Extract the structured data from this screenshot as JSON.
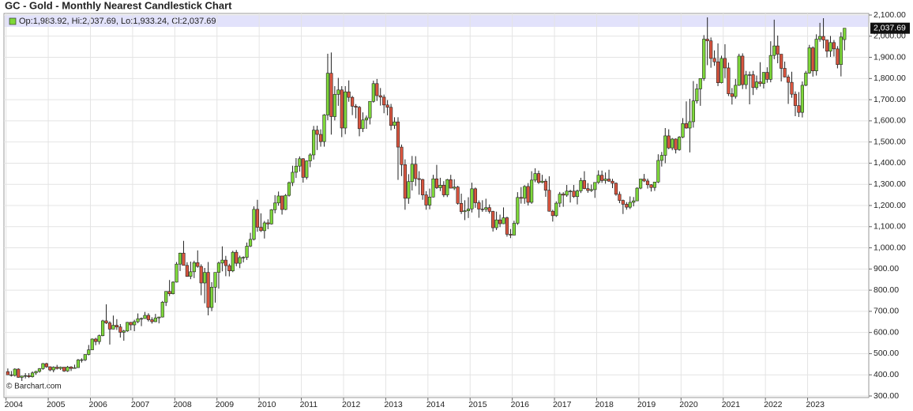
{
  "chart_data": {
    "type": "candlestick",
    "title": "GC - Gold - Monthly Nearest Candlestick Chart",
    "legend": "Op:1,983.92, Hi:2,037.69, Lo:1,933.24, Cl:2,037.69",
    "last_label": "2,037.69",
    "credit": "© Barchart.com",
    "up_color": "#7ed83a",
    "down_color": "#d9553f",
    "grid": true,
    "xlim": [
      2003.95,
      2024.45
    ],
    "xticks": [
      2004,
      2005,
      2006,
      2007,
      2008,
      2009,
      2010,
      2011,
      2012,
      2013,
      2014,
      2015,
      2016,
      2017,
      2018,
      2019,
      2020,
      2021,
      2022,
      2023
    ],
    "ylim": [
      300,
      2100
    ],
    "yticks": [
      {
        "value": 300,
        "label": "300.00"
      },
      {
        "value": 400,
        "label": "400.00"
      },
      {
        "value": 500,
        "label": "500.00"
      },
      {
        "value": 600,
        "label": "600.00"
      },
      {
        "value": 700,
        "label": "700.00"
      },
      {
        "value": 800,
        "label": "800.00"
      },
      {
        "value": 900,
        "label": "900.00"
      },
      {
        "value": 1000,
        "label": "1,000.00"
      },
      {
        "value": 1100,
        "label": "1,100.00"
      },
      {
        "value": 1200,
        "label": "1,200.00"
      },
      {
        "value": 1300,
        "label": "1,300.00"
      },
      {
        "value": 1400,
        "label": "1,400.00"
      },
      {
        "value": 1500,
        "label": "1,500.00"
      },
      {
        "value": 1600,
        "label": "1,600.00"
      },
      {
        "value": 1700,
        "label": "1,700.00"
      },
      {
        "value": 1800,
        "label": "1,800.00"
      },
      {
        "value": 1900,
        "label": "1,900.00"
      },
      {
        "value": 2000,
        "label": "2,000.00"
      },
      {
        "value": 2100,
        "label": "2,100.00"
      }
    ],
    "candles": [
      [
        415,
        430,
        399,
        400
      ],
      [
        400,
        418,
        392,
        397
      ],
      [
        397,
        431,
        392,
        427
      ],
      [
        427,
        431,
        386,
        388
      ],
      [
        388,
        396,
        371,
        394
      ],
      [
        394,
        408,
        383,
        396
      ],
      [
        396,
        408,
        385,
        391
      ],
      [
        391,
        416,
        387,
        409
      ],
      [
        409,
        419,
        400,
        416
      ],
      [
        416,
        432,
        410,
        429
      ],
      [
        429,
        456,
        424,
        453
      ],
      [
        453,
        457,
        433,
        438
      ],
      [
        438,
        440,
        417,
        423
      ],
      [
        423,
        440,
        412,
        436
      ],
      [
        436,
        447,
        425,
        430
      ],
      [
        430,
        439,
        423,
        436
      ],
      [
        436,
        437,
        414,
        418
      ],
      [
        418,
        442,
        414,
        437
      ],
      [
        437,
        441,
        418,
        430
      ],
      [
        430,
        448,
        429,
        434
      ],
      [
        434,
        475,
        433,
        470
      ],
      [
        470,
        478,
        458,
        471
      ],
      [
        471,
        497,
        465,
        496
      ],
      [
        496,
        541,
        492,
        518
      ],
      [
        518,
        572,
        517,
        569
      ],
      [
        569,
        575,
        540,
        557
      ],
      [
        557,
        590,
        544,
        585
      ],
      [
        585,
        660,
        582,
        655
      ],
      [
        655,
        733,
        640,
        645
      ],
      [
        645,
        653,
        543,
        616
      ],
      [
        616,
        680,
        615,
        634
      ],
      [
        634,
        663,
        612,
        626
      ],
      [
        626,
        640,
        576,
        601
      ],
      [
        601,
        613,
        561,
        607
      ],
      [
        607,
        650,
        603,
        648
      ],
      [
        648,
        650,
        610,
        636
      ],
      [
        636,
        660,
        606,
        651
      ],
      [
        651,
        690,
        644,
        665
      ],
      [
        665,
        671,
        630,
        666
      ],
      [
        666,
        697,
        664,
        681
      ],
      [
        681,
        691,
        652,
        660
      ],
      [
        660,
        672,
        642,
        651
      ],
      [
        651,
        688,
        649,
        669
      ],
      [
        669,
        675,
        643,
        673
      ],
      [
        673,
        749,
        671,
        743
      ],
      [
        743,
        795,
        725,
        794
      ],
      [
        794,
        848,
        772,
        783
      ],
      [
        783,
        842,
        780,
        838
      ],
      [
        838,
        933,
        836,
        923
      ],
      [
        923,
        977,
        890,
        975
      ],
      [
        975,
        1033,
        920,
        917
      ],
      [
        917,
        932,
        863,
        865
      ],
      [
        865,
        935,
        852,
        887
      ],
      [
        887,
        939,
        857,
        930
      ],
      [
        930,
        988,
        906,
        912
      ],
      [
        912,
        922,
        776,
        834
      ],
      [
        834,
        905,
        738,
        884
      ],
      [
        884,
        933,
        681,
        718
      ],
      [
        718,
        838,
        701,
        814
      ],
      [
        814,
        882,
        741,
        884
      ],
      [
        884,
        935,
        807,
        928
      ],
      [
        928,
        1007,
        889,
        942
      ],
      [
        942,
        962,
        866,
        916
      ],
      [
        916,
        925,
        865,
        891
      ],
      [
        891,
        986,
        885,
        979
      ],
      [
        979,
        990,
        913,
        927
      ],
      [
        927,
        963,
        904,
        954
      ],
      [
        954,
        960,
        931,
        955
      ],
      [
        955,
        1025,
        943,
        1008
      ],
      [
        1008,
        1071,
        1004,
        1040
      ],
      [
        1040,
        1196,
        1035,
        1182
      ],
      [
        1182,
        1227,
        1076,
        1097
      ],
      [
        1097,
        1163,
        1075,
        1081
      ],
      [
        1081,
        1127,
        1044,
        1118
      ],
      [
        1118,
        1135,
        1088,
        1113
      ],
      [
        1113,
        1183,
        1110,
        1180
      ],
      [
        1180,
        1249,
        1163,
        1212
      ],
      [
        1212,
        1266,
        1199,
        1245
      ],
      [
        1245,
        1246,
        1157,
        1181
      ],
      [
        1181,
        1254,
        1178,
        1248
      ],
      [
        1248,
        1313,
        1242,
        1308
      ],
      [
        1308,
        1388,
        1292,
        1357
      ],
      [
        1357,
        1424,
        1330,
        1386
      ],
      [
        1386,
        1432,
        1360,
        1421
      ],
      [
        1421,
        1424,
        1308,
        1333
      ],
      [
        1333,
        1413,
        1323,
        1411
      ],
      [
        1411,
        1447,
        1381,
        1439
      ],
      [
        1439,
        1576,
        1417,
        1556
      ],
      [
        1556,
        1577,
        1462,
        1536
      ],
      [
        1536,
        1560,
        1478,
        1502
      ],
      [
        1502,
        1632,
        1478,
        1628
      ],
      [
        1628,
        1917,
        1603,
        1825
      ],
      [
        1825,
        1923,
        1535,
        1620
      ],
      [
        1620,
        1764,
        1602,
        1725
      ],
      [
        1725,
        1803,
        1671,
        1746
      ],
      [
        1746,
        1764,
        1523,
        1566
      ],
      [
        1566,
        1764,
        1537,
        1737
      ],
      [
        1737,
        1791,
        1690,
        1711
      ],
      [
        1711,
        1718,
        1627,
        1669
      ],
      [
        1669,
        1679,
        1612,
        1664
      ],
      [
        1664,
        1670,
        1527,
        1563
      ],
      [
        1563,
        1640,
        1547,
        1604
      ],
      [
        1604,
        1625,
        1562,
        1614
      ],
      [
        1614,
        1692,
        1583,
        1692
      ],
      [
        1692,
        1790,
        1686,
        1776
      ],
      [
        1776,
        1798,
        1694,
        1719
      ],
      [
        1719,
        1755,
        1672,
        1712
      ],
      [
        1712,
        1724,
        1636,
        1675
      ],
      [
        1675,
        1698,
        1626,
        1664
      ],
      [
        1664,
        1680,
        1555,
        1578
      ],
      [
        1578,
        1617,
        1562,
        1595
      ],
      [
        1595,
        1617,
        1321,
        1476
      ],
      [
        1476,
        1488,
        1339,
        1393
      ],
      [
        1393,
        1418,
        1180,
        1234
      ],
      [
        1234,
        1348,
        1208,
        1313
      ],
      [
        1313,
        1434,
        1271,
        1395
      ],
      [
        1395,
        1433,
        1292,
        1327
      ],
      [
        1327,
        1362,
        1251,
        1323
      ],
      [
        1323,
        1326,
        1227,
        1250
      ],
      [
        1250,
        1268,
        1180,
        1202
      ],
      [
        1202,
        1280,
        1182,
        1240
      ],
      [
        1240,
        1345,
        1238,
        1326
      ],
      [
        1326,
        1392,
        1278,
        1284
      ],
      [
        1284,
        1331,
        1268,
        1296
      ],
      [
        1296,
        1315,
        1240,
        1250
      ],
      [
        1250,
        1326,
        1240,
        1322
      ],
      [
        1322,
        1345,
        1281,
        1282
      ],
      [
        1282,
        1324,
        1273,
        1287
      ],
      [
        1287,
        1293,
        1204,
        1210
      ],
      [
        1210,
        1256,
        1160,
        1171
      ],
      [
        1171,
        1225,
        1131,
        1175
      ],
      [
        1175,
        1239,
        1141,
        1184
      ],
      [
        1184,
        1308,
        1167,
        1279
      ],
      [
        1279,
        1285,
        1189,
        1213
      ],
      [
        1213,
        1224,
        1142,
        1183
      ],
      [
        1183,
        1225,
        1170,
        1182
      ],
      [
        1182,
        1232,
        1170,
        1190
      ],
      [
        1190,
        1205,
        1162,
        1172
      ],
      [
        1172,
        1175,
        1077,
        1095
      ],
      [
        1095,
        1171,
        1084,
        1132
      ],
      [
        1132,
        1157,
        1098,
        1114
      ],
      [
        1114,
        1191,
        1112,
        1142
      ],
      [
        1142,
        1147,
        1053,
        1064
      ],
      [
        1064,
        1089,
        1046,
        1060
      ],
      [
        1060,
        1128,
        1059,
        1116
      ],
      [
        1116,
        1263,
        1108,
        1238
      ],
      [
        1238,
        1287,
        1209,
        1234
      ],
      [
        1234,
        1296,
        1208,
        1290
      ],
      [
        1290,
        1306,
        1200,
        1215
      ],
      [
        1215,
        1362,
        1208,
        1320
      ],
      [
        1320,
        1376,
        1310,
        1351
      ],
      [
        1351,
        1365,
        1302,
        1309
      ],
      [
        1309,
        1345,
        1305,
        1315
      ],
      [
        1315,
        1326,
        1241,
        1272
      ],
      [
        1272,
        1338,
        1171,
        1173
      ],
      [
        1173,
        1180,
        1124,
        1152
      ],
      [
        1152,
        1220,
        1146,
        1211
      ],
      [
        1211,
        1264,
        1192,
        1254
      ],
      [
        1254,
        1263,
        1194,
        1249
      ],
      [
        1249,
        1297,
        1241,
        1268
      ],
      [
        1268,
        1274,
        1214,
        1268
      ],
      [
        1268,
        1297,
        1236,
        1242
      ],
      [
        1242,
        1275,
        1205,
        1269
      ],
      [
        1269,
        1331,
        1259,
        1318
      ],
      [
        1318,
        1362,
        1277,
        1280
      ],
      [
        1280,
        1306,
        1260,
        1271
      ],
      [
        1271,
        1299,
        1264,
        1275
      ],
      [
        1275,
        1309,
        1236,
        1309
      ],
      [
        1309,
        1366,
        1302,
        1343
      ],
      [
        1343,
        1365,
        1307,
        1318
      ],
      [
        1318,
        1356,
        1303,
        1325
      ],
      [
        1325,
        1369,
        1312,
        1315
      ],
      [
        1315,
        1326,
        1282,
        1305
      ],
      [
        1305,
        1309,
        1246,
        1253
      ],
      [
        1253,
        1266,
        1211,
        1224
      ],
      [
        1224,
        1228,
        1160,
        1206
      ],
      [
        1206,
        1216,
        1180,
        1192
      ],
      [
        1192,
        1243,
        1183,
        1215
      ],
      [
        1215,
        1240,
        1196,
        1222
      ],
      [
        1222,
        1286,
        1221,
        1282
      ],
      [
        1282,
        1326,
        1277,
        1325
      ],
      [
        1325,
        1349,
        1311,
        1316
      ],
      [
        1316,
        1327,
        1280,
        1298
      ],
      [
        1298,
        1301,
        1266,
        1285
      ],
      [
        1285,
        1312,
        1269,
        1311
      ],
      [
        1311,
        1442,
        1306,
        1413
      ],
      [
        1413,
        1453,
        1384,
        1437
      ],
      [
        1437,
        1566,
        1400,
        1529
      ],
      [
        1529,
        1560,
        1466,
        1472
      ],
      [
        1472,
        1519,
        1461,
        1514
      ],
      [
        1514,
        1517,
        1446,
        1464
      ],
      [
        1464,
        1528,
        1459,
        1523
      ],
      [
        1523,
        1613,
        1518,
        1587
      ],
      [
        1587,
        1692,
        1563,
        1566
      ],
      [
        1566,
        1704,
        1451,
        1596
      ],
      [
        1596,
        1788,
        1568,
        1694
      ],
      [
        1694,
        1775,
        1682,
        1751
      ],
      [
        1751,
        1800,
        1671,
        1800
      ],
      [
        1800,
        2005,
        1789,
        1986
      ],
      [
        1986,
        2089,
        1863,
        1978
      ],
      [
        1978,
        1994,
        1851,
        1895
      ],
      [
        1895,
        1933,
        1860,
        1879
      ],
      [
        1879,
        1966,
        1764,
        1780
      ],
      [
        1780,
        1908,
        1777,
        1895
      ],
      [
        1895,
        1962,
        1802,
        1850
      ],
      [
        1850,
        1875,
        1717,
        1728
      ],
      [
        1728,
        1755,
        1677,
        1715
      ],
      [
        1715,
        1798,
        1705,
        1768
      ],
      [
        1768,
        1917,
        1765,
        1906
      ],
      [
        1906,
        1919,
        1750,
        1771
      ],
      [
        1771,
        1836,
        1750,
        1817
      ],
      [
        1817,
        1833,
        1678,
        1818
      ],
      [
        1818,
        1836,
        1722,
        1757
      ],
      [
        1757,
        1814,
        1747,
        1784
      ],
      [
        1784,
        1877,
        1762,
        1776
      ],
      [
        1776,
        1830,
        1753,
        1829
      ],
      [
        1829,
        1853,
        1780,
        1796
      ],
      [
        1796,
        1976,
        1782,
        1909
      ],
      [
        1909,
        2078,
        1891,
        1954
      ],
      [
        1954,
        2003,
        1872,
        1915
      ],
      [
        1915,
        1915,
        1786,
        1848
      ],
      [
        1848,
        1880,
        1805,
        1807
      ],
      [
        1807,
        1818,
        1680,
        1782
      ],
      [
        1782,
        1832,
        1709,
        1726
      ],
      [
        1726,
        1739,
        1622,
        1672
      ],
      [
        1672,
        1736,
        1618,
        1640
      ],
      [
        1640,
        1786,
        1616,
        1768
      ],
      [
        1768,
        1836,
        1764,
        1826
      ],
      [
        1826,
        1959,
        1823,
        1945
      ],
      [
        1945,
        1952,
        1809,
        1836
      ],
      [
        1836,
        2009,
        1814,
        1986
      ],
      [
        1986,
        2063,
        1974,
        1999
      ],
      [
        1999,
        2085,
        1942,
        1982
      ],
      [
        1982,
        1983,
        1900,
        1929
      ],
      [
        1929,
        2001,
        1902,
        1970
      ],
      [
        1970,
        1982,
        1904,
        1940
      ],
      [
        1940,
        1953,
        1848,
        1866
      ],
      [
        1866,
        2019,
        1810,
        1996
      ],
      [
        1983.92,
        2037.69,
        1933.24,
        2037.69
      ]
    ]
  }
}
